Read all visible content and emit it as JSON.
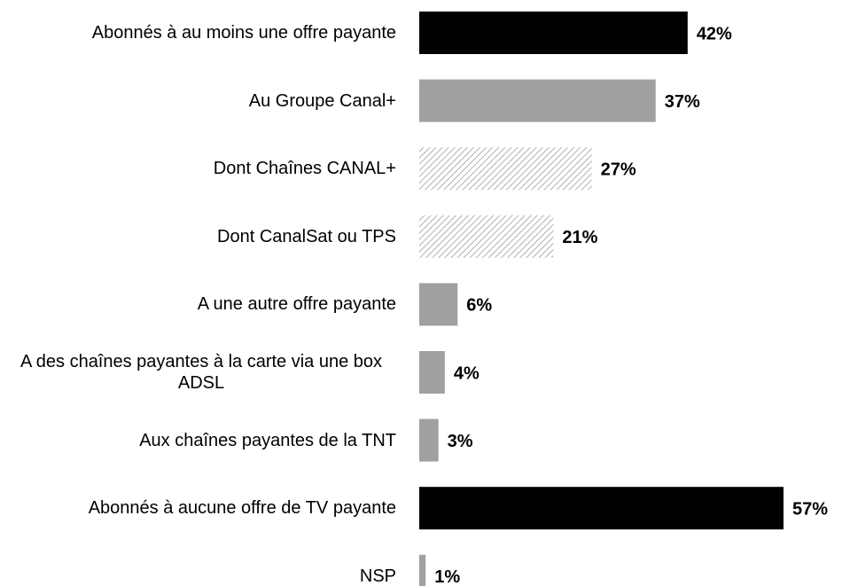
{
  "chart_data": {
    "type": "bar",
    "orientation": "horizontal",
    "categories": [
      "Abonnés à au moins une offre payante",
      "Au Groupe Canal+",
      "Dont Chaînes CANAL+",
      "Dont CanalSat ou TPS",
      "A une autre offre payante",
      "A des chaînes payantes à la carte via une box ADSL",
      "Aux chaînes payantes de la TNT",
      "Abonnés à aucune offre de TV payante",
      "NSP"
    ],
    "values": [
      42,
      37,
      27,
      21,
      6,
      4,
      3,
      57,
      1
    ],
    "value_labels": [
      "42%",
      "37%",
      "27%",
      "21%",
      "6%",
      "4%",
      "3%",
      "57%",
      "1%"
    ],
    "colors": [
      "#000000",
      "#a0a0a0",
      "#c8c8c8",
      "#c8c8c8",
      "#a0a0a0",
      "#a0a0a0",
      "#a0a0a0",
      "#000000",
      "#a0a0a0"
    ],
    "patterns": [
      "solid",
      "solid",
      "hatch",
      "hatch",
      "solid",
      "solid",
      "solid",
      "solid",
      "solid"
    ]
  }
}
